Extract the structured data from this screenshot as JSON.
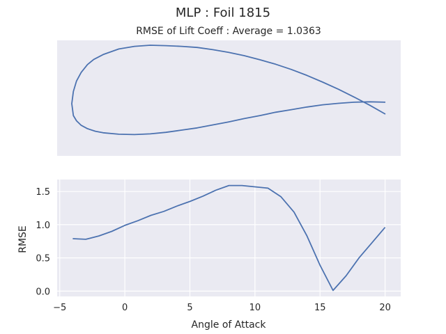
{
  "figure": {
    "suptitle": "MLP   :   Foil 1815",
    "subtitle": "RMSE of Lift Coeff : Average = 1.0363"
  },
  "colors": {
    "line": "#4c72b0",
    "axes_bg": "#eaeaf2",
    "grid": "#ffffff",
    "text": "#262626"
  },
  "chart_data": [
    {
      "type": "line",
      "title": "",
      "xlabel": "",
      "ylabel": "",
      "grid": false,
      "x": [
        1.0,
        0.95,
        0.9,
        0.85,
        0.8,
        0.75,
        0.7,
        0.65,
        0.6,
        0.55,
        0.5,
        0.45,
        0.4,
        0.35,
        0.3,
        0.25,
        0.2,
        0.15,
        0.1,
        0.07,
        0.05,
        0.03,
        0.015,
        0.005,
        0.0,
        0.005,
        0.015,
        0.03,
        0.05,
        0.075,
        0.1,
        0.15,
        0.2,
        0.25,
        0.3,
        0.35,
        0.4,
        0.45,
        0.5,
        0.55,
        0.6,
        0.65,
        0.7,
        0.75,
        0.8,
        0.85,
        0.9,
        0.95,
        1.0
      ],
      "y": [
        0.0,
        0.024,
        0.046,
        0.067,
        0.086,
        0.104,
        0.12,
        0.134,
        0.146,
        0.157,
        0.166,
        0.173,
        0.179,
        0.182,
        0.184,
        0.185,
        0.182,
        0.175,
        0.16,
        0.147,
        0.133,
        0.112,
        0.089,
        0.061,
        0.028,
        -0.004,
        -0.018,
        -0.03,
        -0.039,
        -0.046,
        -0.05,
        -0.054,
        -0.055,
        -0.053,
        -0.049,
        -0.043,
        -0.037,
        -0.029,
        -0.021,
        -0.012,
        -0.004,
        0.005,
        0.012,
        0.019,
        0.025,
        0.029,
        0.032,
        0.033,
        0.032
      ]
    },
    {
      "type": "line",
      "title": "",
      "xlabel": "Angle of Attack",
      "ylabel": "RMSE",
      "grid": true,
      "xlim": [
        -5.2,
        21.2
      ],
      "ylim": [
        -0.08,
        1.68
      ],
      "xticks": [
        -5,
        0,
        5,
        10,
        15,
        20
      ],
      "xtick_labels": [
        "−5",
        "0",
        "5",
        "10",
        "15",
        "20"
      ],
      "yticks": [
        0.0,
        0.5,
        1.0,
        1.5
      ],
      "ytick_labels": [
        "0.0",
        "0.5",
        "1.0",
        "1.5"
      ],
      "x": [
        -4,
        -3,
        -2,
        -1,
        0,
        1,
        2,
        3,
        4,
        5,
        6,
        7,
        8,
        9,
        10,
        11,
        12,
        13,
        14,
        15,
        16,
        17,
        18,
        19,
        20
      ],
      "y": [
        0.79,
        0.78,
        0.83,
        0.9,
        0.99,
        1.06,
        1.14,
        1.2,
        1.28,
        1.35,
        1.43,
        1.52,
        1.59,
        1.59,
        1.57,
        1.55,
        1.42,
        1.19,
        0.83,
        0.39,
        0.01,
        0.23,
        0.5,
        0.73,
        0.96
      ]
    }
  ]
}
